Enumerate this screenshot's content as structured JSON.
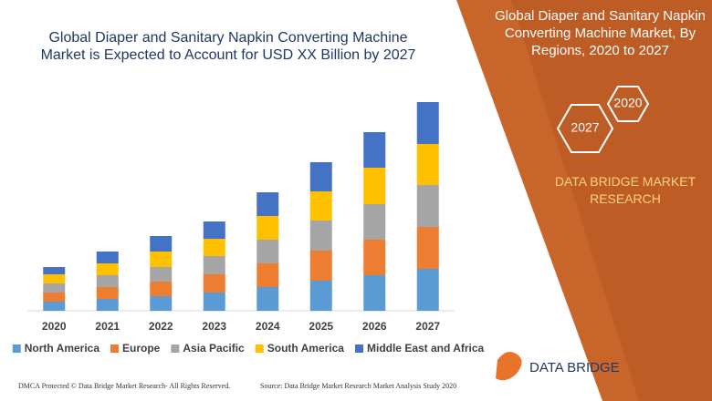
{
  "header": {
    "title": "Global Diaper and Sanitary Napkin Converting Machine Market, By Regions, 2020 to 2027",
    "hexagons": [
      "2020",
      "2027"
    ],
    "brand": "DATA BRIDGE MARKET RESEARCH"
  },
  "chart_data": {
    "type": "stacked_bar",
    "title": "Global Diaper and Sanitary Napkin Converting Machine Market is Expected to Account for USD XX Billion by 2027",
    "categories": [
      "2020",
      "2021",
      "2022",
      "2023",
      "2024",
      "2025",
      "2026",
      "2027"
    ],
    "series": [
      {
        "name": "North America",
        "color": "#5b9bd5",
        "values": [
          10,
          13,
          16,
          20,
          26,
          33,
          39,
          46
        ]
      },
      {
        "name": "Europe",
        "color": "#ed7d31",
        "values": [
          10,
          13,
          16,
          20,
          26,
          33,
          39,
          46
        ]
      },
      {
        "name": "Asia Pacific",
        "color": "#a5a5a5",
        "values": [
          10,
          13,
          16,
          20,
          26,
          33,
          39,
          46
        ]
      },
      {
        "name": "South America",
        "color": "#ffc000",
        "values": [
          10,
          13,
          17,
          19,
          26,
          32,
          40,
          45
        ]
      },
      {
        "name": "Middle East and Africa",
        "color": "#4472c4",
        "values": [
          8,
          13,
          17,
          19,
          26,
          32,
          39,
          46
        ]
      }
    ],
    "ylim": [
      0,
      230
    ]
  },
  "footer": {
    "left": "DMCA Protected © Data Bridge Market Research- All Rights Reserved.",
    "source": "Source: Data Bridge Market Research Market Analysis Study 2020",
    "logo": "DATA BRIDGE"
  }
}
